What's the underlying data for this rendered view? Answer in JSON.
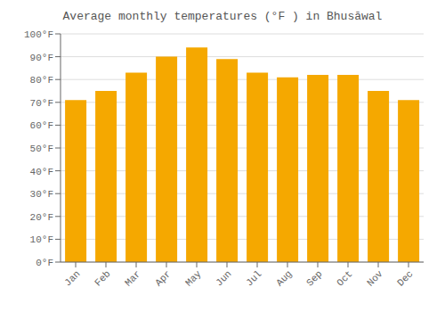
{
  "chart_data": {
    "type": "bar",
    "title": "Average monthly temperatures (°F ) in Bhusāwal",
    "categories": [
      "Jan",
      "Feb",
      "Mar",
      "Apr",
      "May",
      "Jun",
      "Jul",
      "Aug",
      "Sep",
      "Oct",
      "Nov",
      "Dec"
    ],
    "values": [
      71,
      75,
      83,
      90,
      94,
      89,
      83,
      81,
      82,
      82,
      75,
      71
    ],
    "color": "#F5A800",
    "ylim": [
      0,
      100
    ],
    "yticks": [
      {
        "value": 0,
        "label": "0°F"
      },
      {
        "value": 10,
        "label": "10°F"
      },
      {
        "value": 20,
        "label": "20°F"
      },
      {
        "value": 30,
        "label": "30°F"
      },
      {
        "value": 40,
        "label": "40°F"
      },
      {
        "value": 50,
        "label": "50°F"
      },
      {
        "value": 60,
        "label": "60°F"
      },
      {
        "value": 70,
        "label": "70°F"
      },
      {
        "value": 80,
        "label": "80°F"
      },
      {
        "value": 90,
        "label": "90°F"
      },
      {
        "value": 100,
        "label": "100°F"
      }
    ],
    "grid": true
  }
}
